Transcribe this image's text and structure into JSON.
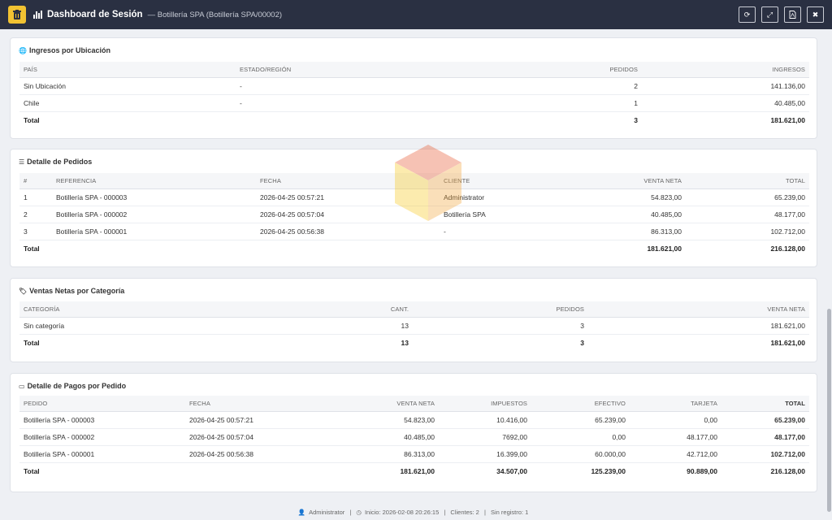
{
  "header": {
    "title": "Dashboard de Sesión",
    "subtitle": "— Botillería SPA (Botillería SPA/00002)",
    "buttons": [
      "refresh-icon",
      "expand-icon",
      "pdf-icon",
      "close-icon"
    ]
  },
  "ubicacion": {
    "title": "Ingresos por Ubicación",
    "headers": [
      "PAÍS",
      "ESTADO/REGIÓN",
      "PEDIDOS",
      "INGRESOS"
    ],
    "rows": [
      [
        "Sin Ubicación",
        "-",
        "2",
        "141.136,00"
      ],
      [
        "Chile",
        "-",
        "1",
        "40.485,00"
      ]
    ],
    "total": [
      "Total",
      "",
      "3",
      "181.621,00"
    ]
  },
  "pedidos": {
    "title": "Detalle de Pedidos",
    "headers": [
      "#",
      "REFERENCIA",
      "FECHA",
      "CLIENTE",
      "VENTA NETA",
      "TOTAL"
    ],
    "rows": [
      [
        "1",
        "Botillería SPA - 000003",
        "2026-04-25 00:57:21",
        "Administrator",
        "54.823,00",
        "65.239,00"
      ],
      [
        "2",
        "Botillería SPA - 000002",
        "2026-04-25 00:57:04",
        "Botillería SPA",
        "40.485,00",
        "48.177,00"
      ],
      [
        "3",
        "Botillería SPA - 000001",
        "2026-04-25 00:56:38",
        "-",
        "86.313,00",
        "102.712,00"
      ]
    ],
    "total": [
      "Total",
      "",
      "",
      "",
      "181.621,00",
      "216.128,00"
    ]
  },
  "categoria": {
    "title": "Ventas Netas por Categoría",
    "headers": [
      "CATEGORÍA",
      "CANT.",
      "PEDIDOS",
      "VENTA NETA"
    ],
    "rows": [
      [
        "Sin categoría",
        "13",
        "3",
        "181.621,00"
      ]
    ],
    "total": [
      "Total",
      "13",
      "3",
      "181.621,00"
    ]
  },
  "pagos": {
    "title": "Detalle de Pagos por Pedido",
    "headers": [
      "PEDIDO",
      "FECHA",
      "VENTA NETA",
      "IMPUESTOS",
      "EFECTIVO",
      "TARJETA",
      "TOTAL"
    ],
    "rows": [
      [
        "Botillería SPA - 000003",
        "2026-04-25 00:57:21",
        "54.823,00",
        "10.416,00",
        "65.239,00",
        "0,00",
        "65.239,00"
      ],
      [
        "Botillería SPA - 000002",
        "2026-04-25 00:57:04",
        "40.485,00",
        "7692,00",
        "0,00",
        "48.177,00",
        "48.177,00"
      ],
      [
        "Botillería SPA - 000001",
        "2026-04-25 00:56:38",
        "86.313,00",
        "16.399,00",
        "60.000,00",
        "42.712,00",
        "102.712,00"
      ]
    ],
    "total": [
      "Total",
      "",
      "181.621,00",
      "34.507,00",
      "125.239,00",
      "90.889,00",
      "216.128,00"
    ]
  },
  "footer": {
    "user": "Administrator",
    "inicio": "Inicio: 2026-02-08 20:26:15",
    "clientes": "Clientes: 2",
    "registro": "Sin registro: 1"
  }
}
